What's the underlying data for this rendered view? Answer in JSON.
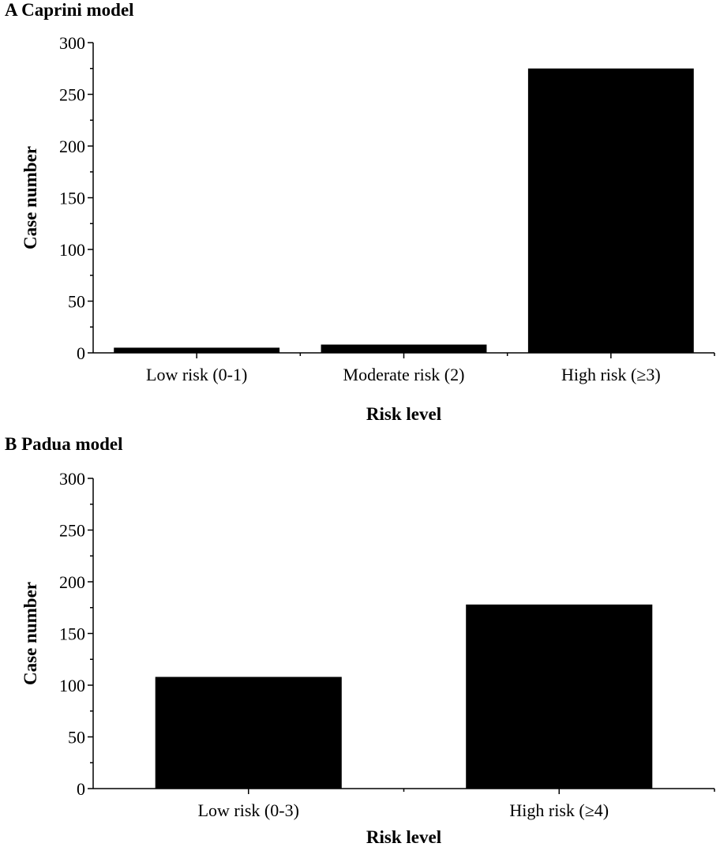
{
  "chart_data": [
    {
      "type": "bar",
      "title": "A Caprini model",
      "xlabel": "Risk level",
      "ylabel": "Case number",
      "categories": [
        "Low risk (0-1)",
        "Moderate risk (2)",
        "High risk (≥3)"
      ],
      "values": [
        5,
        8,
        275
      ],
      "ylim": [
        0,
        300
      ],
      "yticks": [
        0,
        50,
        100,
        150,
        200,
        250,
        300
      ],
      "grid": false,
      "legend": null,
      "bar_color": "#000000"
    },
    {
      "type": "bar",
      "title": "B Padua model",
      "xlabel": "Risk level",
      "ylabel": "Case number",
      "categories": [
        "Low risk (0-3)",
        "High risk (≥4)"
      ],
      "values": [
        108,
        178
      ],
      "ylim": [
        0,
        300
      ],
      "yticks": [
        0,
        50,
        100,
        150,
        200,
        250,
        300
      ],
      "grid": false,
      "legend": null,
      "bar_color": "#000000"
    }
  ]
}
